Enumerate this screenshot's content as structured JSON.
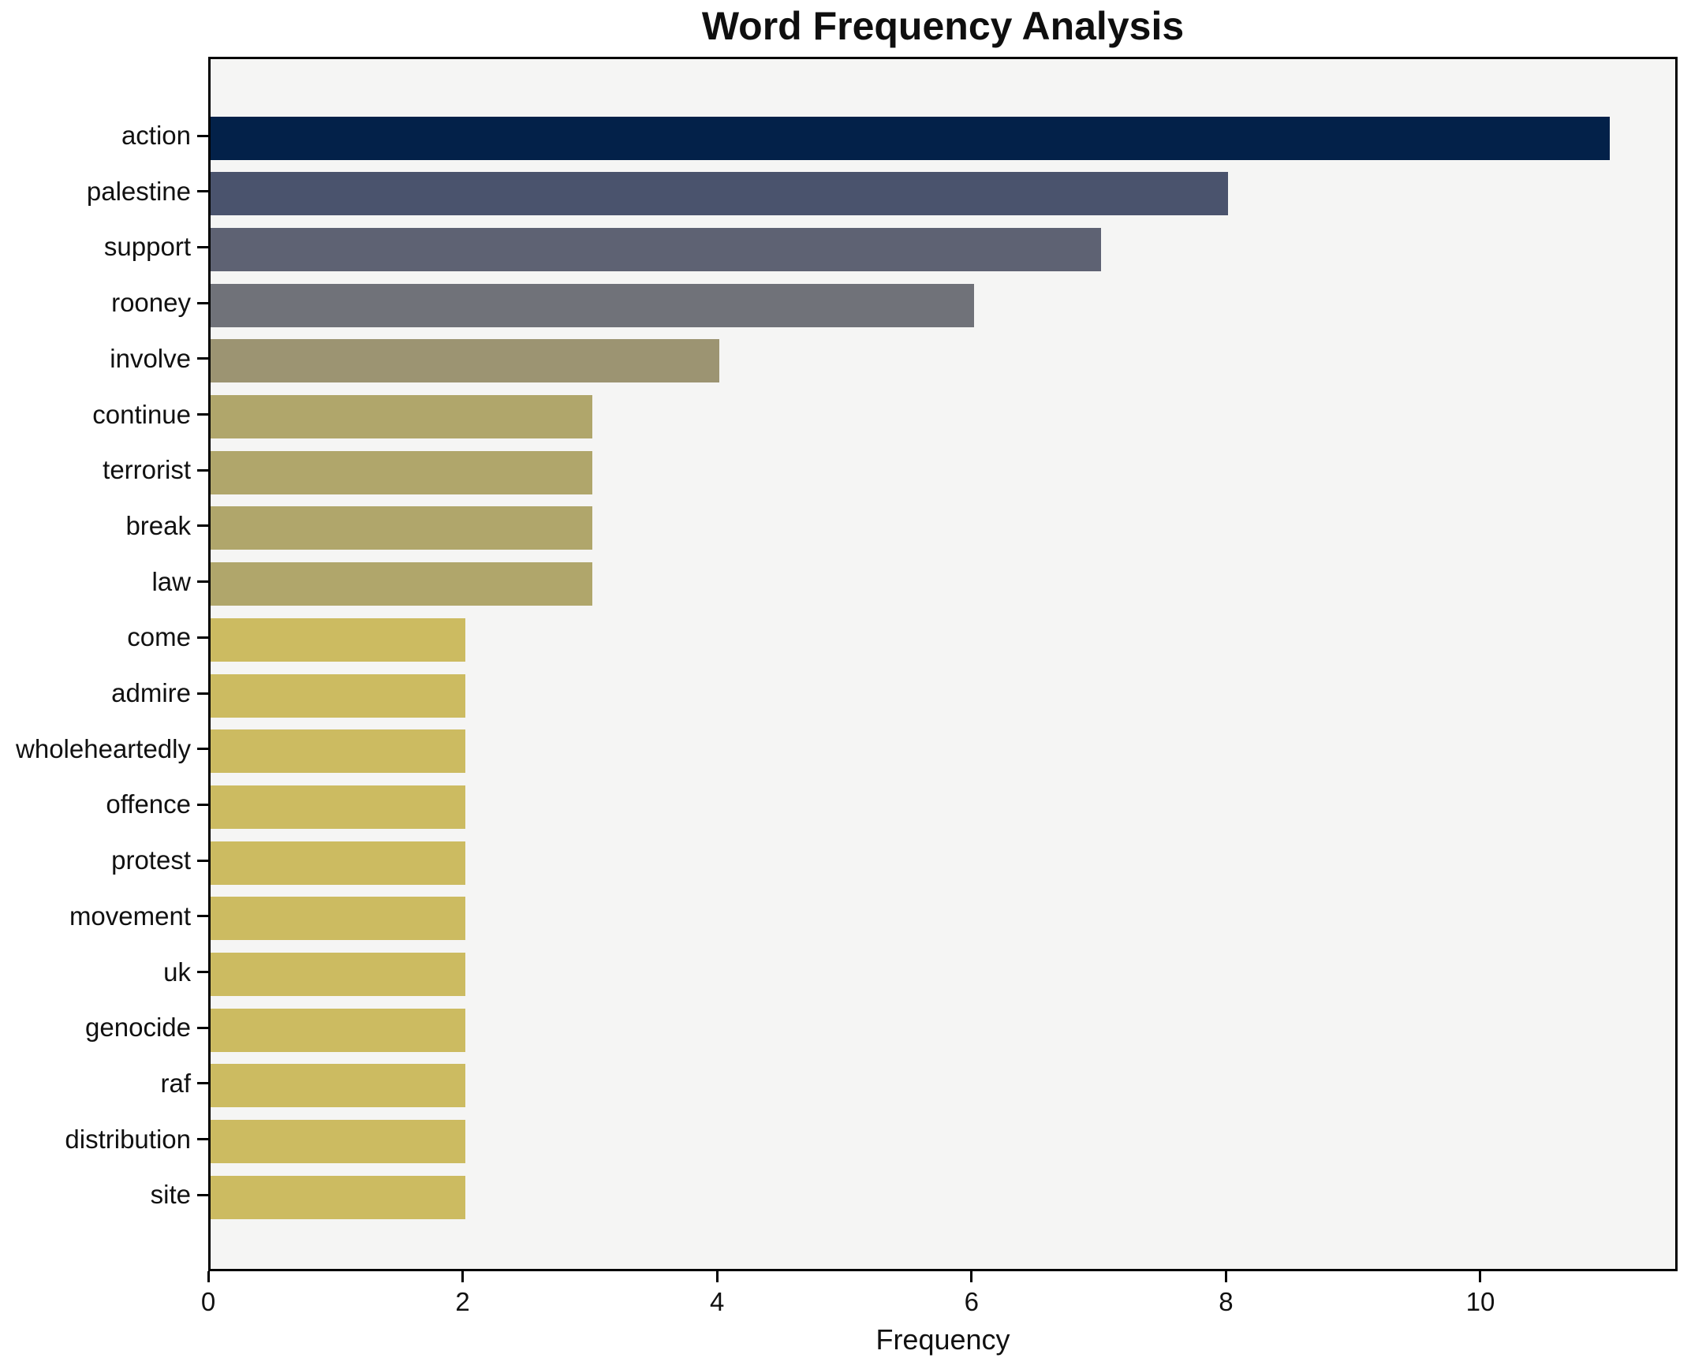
{
  "chart_data": {
    "type": "bar",
    "orientation": "horizontal",
    "title": "Word Frequency Analysis",
    "xlabel": "Frequency",
    "ylabel": "",
    "categories": [
      "action",
      "palestine",
      "support",
      "rooney",
      "involve",
      "continue",
      "terrorist",
      "break",
      "law",
      "come",
      "admire",
      "wholeheartedly",
      "offence",
      "protest",
      "movement",
      "uk",
      "genocide",
      "raf",
      "distribution",
      "site"
    ],
    "values": [
      11,
      8,
      7,
      6,
      4,
      3,
      3,
      3,
      3,
      2,
      2,
      2,
      2,
      2,
      2,
      2,
      2,
      2,
      2,
      2
    ],
    "bar_colors": [
      "#032149",
      "#4a536d",
      "#5e6273",
      "#707279",
      "#9c9472",
      "#b0a66b",
      "#b0a66b",
      "#b0a66b",
      "#b0a66b",
      "#ccbb61",
      "#ccbb61",
      "#ccbb61",
      "#ccbb61",
      "#ccbb61",
      "#ccbb61",
      "#ccbb61",
      "#ccbb61",
      "#ccbb61",
      "#ccbb61",
      "#ccbb61"
    ],
    "xlim": [
      0,
      11.55
    ],
    "x_ticks": [
      0,
      2,
      4,
      6,
      8,
      10
    ],
    "grid": "off",
    "legend": "none",
    "plot_background": "#f5f5f4",
    "figure_background": "#ffffff",
    "spine_color": "#000000"
  }
}
